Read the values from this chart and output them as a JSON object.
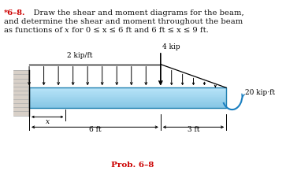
{
  "title_bold": "*6–8.",
  "title_line1_rest": "    Draw the shear and moment diagrams for the beam,",
  "title_line2": "and determine the shear and moment throughout the beam",
  "title_line3_before_x": "as functions of ",
  "title_line3_after_x": " for 0 ≤ x ≤ 6 ft and 6 ft ≤ x ≤ 9 ft.",
  "prob_label": "Prob. 6–8",
  "dist_load_label": "2 kip/ft",
  "point_load_label": "4 kip",
  "moment_label": "20 kip·ft",
  "x_label": "x",
  "dim1_label": "6 ft",
  "dim2_label": "3 ft",
  "beam_color_light": "#b8e4f8",
  "beam_color_dark": "#60c0e0",
  "wall_color": "#cccccc",
  "background_color": "#ffffff",
  "title_color_bold": "#cc0000",
  "title_color_normal": "#111111",
  "prob_color": "#cc0000",
  "arrow_color": "#000000",
  "moment_arc_color": "#1a7fc0",
  "beam_border_color": "#2080b0"
}
